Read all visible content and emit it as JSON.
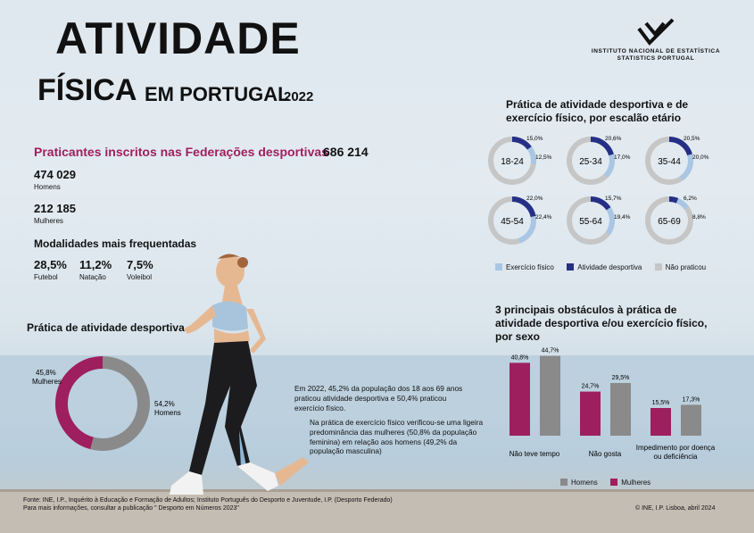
{
  "title": {
    "line1": "ATIVIDADE",
    "line2": "FÍSICA",
    "line3": "EM PORTUGAL",
    "year": "2022"
  },
  "logo": {
    "org": "Instituto Nacional de Estatística",
    "org_en": "Statistics Portugal"
  },
  "federations": {
    "label": "Praticantes inscritos nas Federações desportivas",
    "total": "686 214",
    "men_value": "474 029",
    "men_label": "Homens",
    "women_value": "212 185",
    "women_label": "Mulheres"
  },
  "modalities": {
    "heading": "Modalidades mais frequentadas",
    "items": [
      {
        "value": "28,5%",
        "label": "Futebol"
      },
      {
        "value": "11,2%",
        "label": "Natação"
      },
      {
        "value": "7,5%",
        "label": "Voleibol"
      }
    ]
  },
  "colors": {
    "purple": "#9e1f5e",
    "gray": "#8a8a8a",
    "light_blue": "#a9c6e4",
    "navy": "#262f86",
    "light_gray": "#c6c6c6"
  },
  "notes": {
    "p1": "Em 2022, 45,2% da população dos 18 aos 69 anos praticou atividade desportiva e 50,4% praticou exercício físico.",
    "p2": "Na prática de exercício físico verificou-se uma ligeira predominância das mulheres (50,8% da população feminina) em relação aos homens (49,2% da população masculina)"
  },
  "footer": {
    "source": "Fonte: INE, I.P., Inquérito à Educação e Formação de Adultos; Instituto Português do Desporto e Juventude, I.P. (Desporto Federado)",
    "more": "Para mais informações, consultar a publicação \" Desporto em Números 2023\"",
    "copyright": "© INE, I.P. Lisboa, abril 2024"
  },
  "chart_data": [
    {
      "type": "pie",
      "donut": true,
      "title": "Prática de atividade desportiva",
      "slices": [
        {
          "label": "Homens",
          "value": 54.2,
          "text": "54,2%",
          "color": "#8a8a8a"
        },
        {
          "label": "Mulheres",
          "value": 45.8,
          "text": "45,8%",
          "color": "#9e1f5e"
        }
      ]
    },
    {
      "type": "pie",
      "donut": true,
      "title": "Prática de atividade desportiva e de exercício físico, por escalão etário",
      "legend": [
        "Exercício físico",
        "Atividade desportiva",
        "Não praticou"
      ],
      "groups": [
        {
          "age": "18-24",
          "exercicio": 12.5,
          "exercicio_text": "12,5%",
          "desportiva": 15.0,
          "desportiva_text": "15,0%"
        },
        {
          "age": "25-34",
          "exercicio": 17.0,
          "exercicio_text": "17,0%",
          "desportiva": 20.6,
          "desportiva_text": "20,6%"
        },
        {
          "age": "35-44",
          "exercicio": 20.0,
          "exercicio_text": "20,0%",
          "desportiva": 20.5,
          "desportiva_text": "20,5%"
        },
        {
          "age": "45-54",
          "exercicio": 22.4,
          "exercicio_text": "22,4%",
          "desportiva": 22.0,
          "desportiva_text": "22,0%"
        },
        {
          "age": "55-64",
          "exercicio": 19.4,
          "exercicio_text": "19,4%",
          "desportiva": 15.7,
          "desportiva_text": "15,7%"
        },
        {
          "age": "65-69",
          "exercicio": 8.8,
          "exercicio_text": "8,8%",
          "desportiva": 6.2,
          "desportiva_text": "6,2%"
        }
      ]
    },
    {
      "type": "bar",
      "title": "3 principais obstáculos à prática de atividade desportiva e/ou exercício físico, por sexo",
      "categories": [
        "Não teve tempo",
        "Não gosta",
        "Impedimento por doença ou deficiência"
      ],
      "series": [
        {
          "name": "Mulheres",
          "values": [
            40.8,
            24.7,
            15.5
          ],
          "labels": [
            "40,8%",
            "24,7%",
            "15,5%"
          ],
          "color": "#9e1f5e"
        },
        {
          "name": "Homens",
          "values": [
            44.7,
            29.5,
            17.3
          ],
          "labels": [
            "44,7%",
            "29,5%",
            "17,3%"
          ],
          "color": "#8a8a8a"
        }
      ],
      "legend": [
        "Homens",
        "Mulheres"
      ]
    }
  ]
}
